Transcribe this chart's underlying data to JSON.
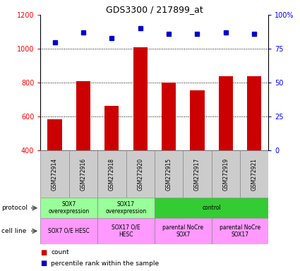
{
  "title": "GDS3300 / 217899_at",
  "samples": [
    "GSM272914",
    "GSM272916",
    "GSM272918",
    "GSM272920",
    "GSM272915",
    "GSM272917",
    "GSM272919",
    "GSM272921"
  ],
  "counts": [
    585,
    808,
    665,
    1010,
    800,
    755,
    840,
    840
  ],
  "percentile_ranks": [
    80,
    87,
    83,
    90,
    86,
    86,
    87,
    86
  ],
  "ylim_left": [
    400,
    1200
  ],
  "ylim_right": [
    0,
    100
  ],
  "yticks_left": [
    400,
    600,
    800,
    1000,
    1200
  ],
  "yticks_right": [
    0,
    25,
    50,
    75,
    100
  ],
  "bar_color": "#cc0000",
  "dot_color": "#0000cc",
  "grid_lines": [
    600,
    800,
    1000
  ],
  "protocol_groups": [
    {
      "label": "SOX7\noverexpression",
      "start": 0,
      "end": 2,
      "color": "#99ff99"
    },
    {
      "label": "SOX17\noverexpression",
      "start": 2,
      "end": 4,
      "color": "#99ff99"
    },
    {
      "label": "control",
      "start": 4,
      "end": 8,
      "color": "#33cc33"
    }
  ],
  "cellline_groups": [
    {
      "label": "SOX7 O/E HESC",
      "start": 0,
      "end": 2,
      "color": "#ff99ff"
    },
    {
      "label": "SOX17 O/E\nHESC",
      "start": 2,
      "end": 4,
      "color": "#ff99ff"
    },
    {
      "label": "parental NoCre\nSOX7",
      "start": 4,
      "end": 6,
      "color": "#ff99ff"
    },
    {
      "label": "parental NoCre\nSOX17",
      "start": 6,
      "end": 8,
      "color": "#ff99ff"
    }
  ],
  "legend_items": [
    {
      "color": "#cc0000",
      "label": "count"
    },
    {
      "color": "#0000cc",
      "label": "percentile rank within the sample"
    }
  ],
  "sample_bg": "#cccccc",
  "border_color": "#888888"
}
